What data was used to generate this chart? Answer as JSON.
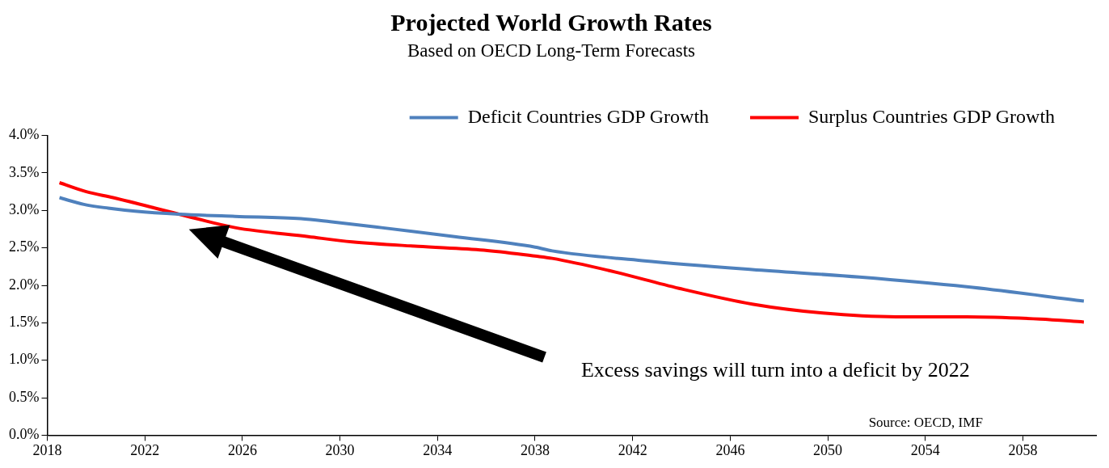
{
  "chart_data": {
    "type": "line",
    "title": "Projected World Growth Rates",
    "subtitle": "Based on OECD Long-Term Forecasts",
    "xlim": [
      2018,
      2061
    ],
    "xticks": [
      2018,
      2022,
      2026,
      2030,
      2034,
      2038,
      2042,
      2046,
      2050,
      2054,
      2058
    ],
    "ylim": [
      0,
      4
    ],
    "yticks": [
      {
        "value": 0,
        "label": "0.0%"
      },
      {
        "value": 0.5,
        "label": "0.5%"
      },
      {
        "value": 1,
        "label": "1.0%"
      },
      {
        "value": 1.5,
        "label": "1.5%"
      },
      {
        "value": 2,
        "label": "2.0%"
      },
      {
        "value": 2.5,
        "label": "2.5%"
      },
      {
        "value": 3,
        "label": "3.0%"
      },
      {
        "value": 3.5,
        "label": "3.5%"
      },
      {
        "value": 4,
        "label": "4.0%"
      }
    ],
    "series": [
      {
        "name": "Deficit Countries GDP Growth",
        "color": "#4f81bd",
        "x": [
          2018.5,
          2019.5,
          2020.5,
          2021.6,
          2023.4,
          2025.7,
          2028.4,
          2029.6,
          2031.7,
          2034.7,
          2038,
          2038.7,
          2042.4,
          2046.9,
          2051.3,
          2055.7,
          2060.5
        ],
        "values": [
          3.17,
          3.08,
          3.03,
          2.99,
          2.95,
          2.92,
          2.89,
          2.85,
          2.77,
          2.65,
          2.51,
          2.46,
          2.33,
          2.21,
          2.11,
          1.98,
          1.79
        ]
      },
      {
        "name": "Surplus Countries GDP Growth",
        "color": "#ff0000",
        "x": [
          2018.5,
          2019.6,
          2020.7,
          2023.4,
          2025.7,
          2028.7,
          2030.5,
          2033.2,
          2035.9,
          2038,
          2038.7,
          2041,
          2043.9,
          2046.9,
          2049.8,
          2052.8,
          2055.7,
          2058.7,
          2060.5
        ],
        "values": [
          3.37,
          3.25,
          3.17,
          2.95,
          2.77,
          2.65,
          2.58,
          2.52,
          2.47,
          2.39,
          2.36,
          2.2,
          1.96,
          1.75,
          1.63,
          1.58,
          1.58,
          1.55,
          1.51
        ]
      }
    ],
    "legend": "top",
    "grid": false,
    "marker": "none",
    "line_style": "solid",
    "annotations": [
      "Excess savings will turn into a deficit by 2022",
      "Source: OECD, IMF"
    ]
  }
}
